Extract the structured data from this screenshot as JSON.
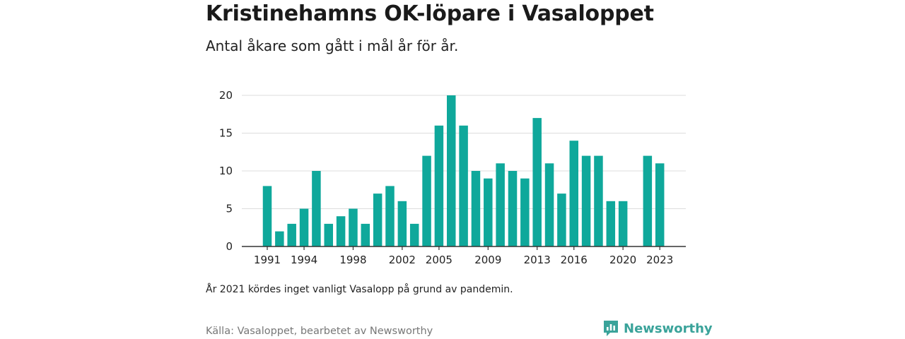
{
  "title": "Kristinehamns OK-löpare i Vasaloppet",
  "subtitle": "Antal åkare som gått i mål år för år.",
  "note": "År 2021 kördes inget vanligt Vasalopp på grund av pandemin.",
  "source": "Källa: Vasaloppet, bearbetet av Newsworthy",
  "brand": {
    "name": "Newsworthy",
    "color": "#3aa39a"
  },
  "colors": {
    "bar": "#0fa89b",
    "grid": "#dddddd",
    "axis": "#333333"
  },
  "chart_data": {
    "type": "bar",
    "categories": [
      "1991",
      "1992",
      "1993",
      "1994",
      "1995",
      "1996",
      "1997",
      "1998",
      "1999",
      "2000",
      "2001",
      "2002",
      "2003",
      "2004",
      "2005",
      "2006",
      "2007",
      "2008",
      "2009",
      "2010",
      "2011",
      "2012",
      "2013",
      "2014",
      "2015",
      "2016",
      "2017",
      "2018",
      "2019",
      "2020",
      "2021",
      "2022",
      "2023"
    ],
    "values": [
      8,
      2,
      3,
      5,
      10,
      3,
      4,
      5,
      3,
      7,
      8,
      6,
      3,
      12,
      16,
      20,
      16,
      10,
      9,
      11,
      10,
      9,
      17,
      11,
      7,
      14,
      12,
      12,
      6,
      6,
      null,
      12,
      11
    ],
    "x_tick_labels": [
      "1991",
      "1994",
      "1998",
      "2002",
      "2005",
      "2009",
      "2013",
      "2016",
      "2020",
      "2023"
    ],
    "y_ticks": [
      0,
      5,
      10,
      15,
      20
    ],
    "ylim": [
      0,
      20
    ],
    "grid": true,
    "xlabel": "",
    "ylabel": ""
  }
}
